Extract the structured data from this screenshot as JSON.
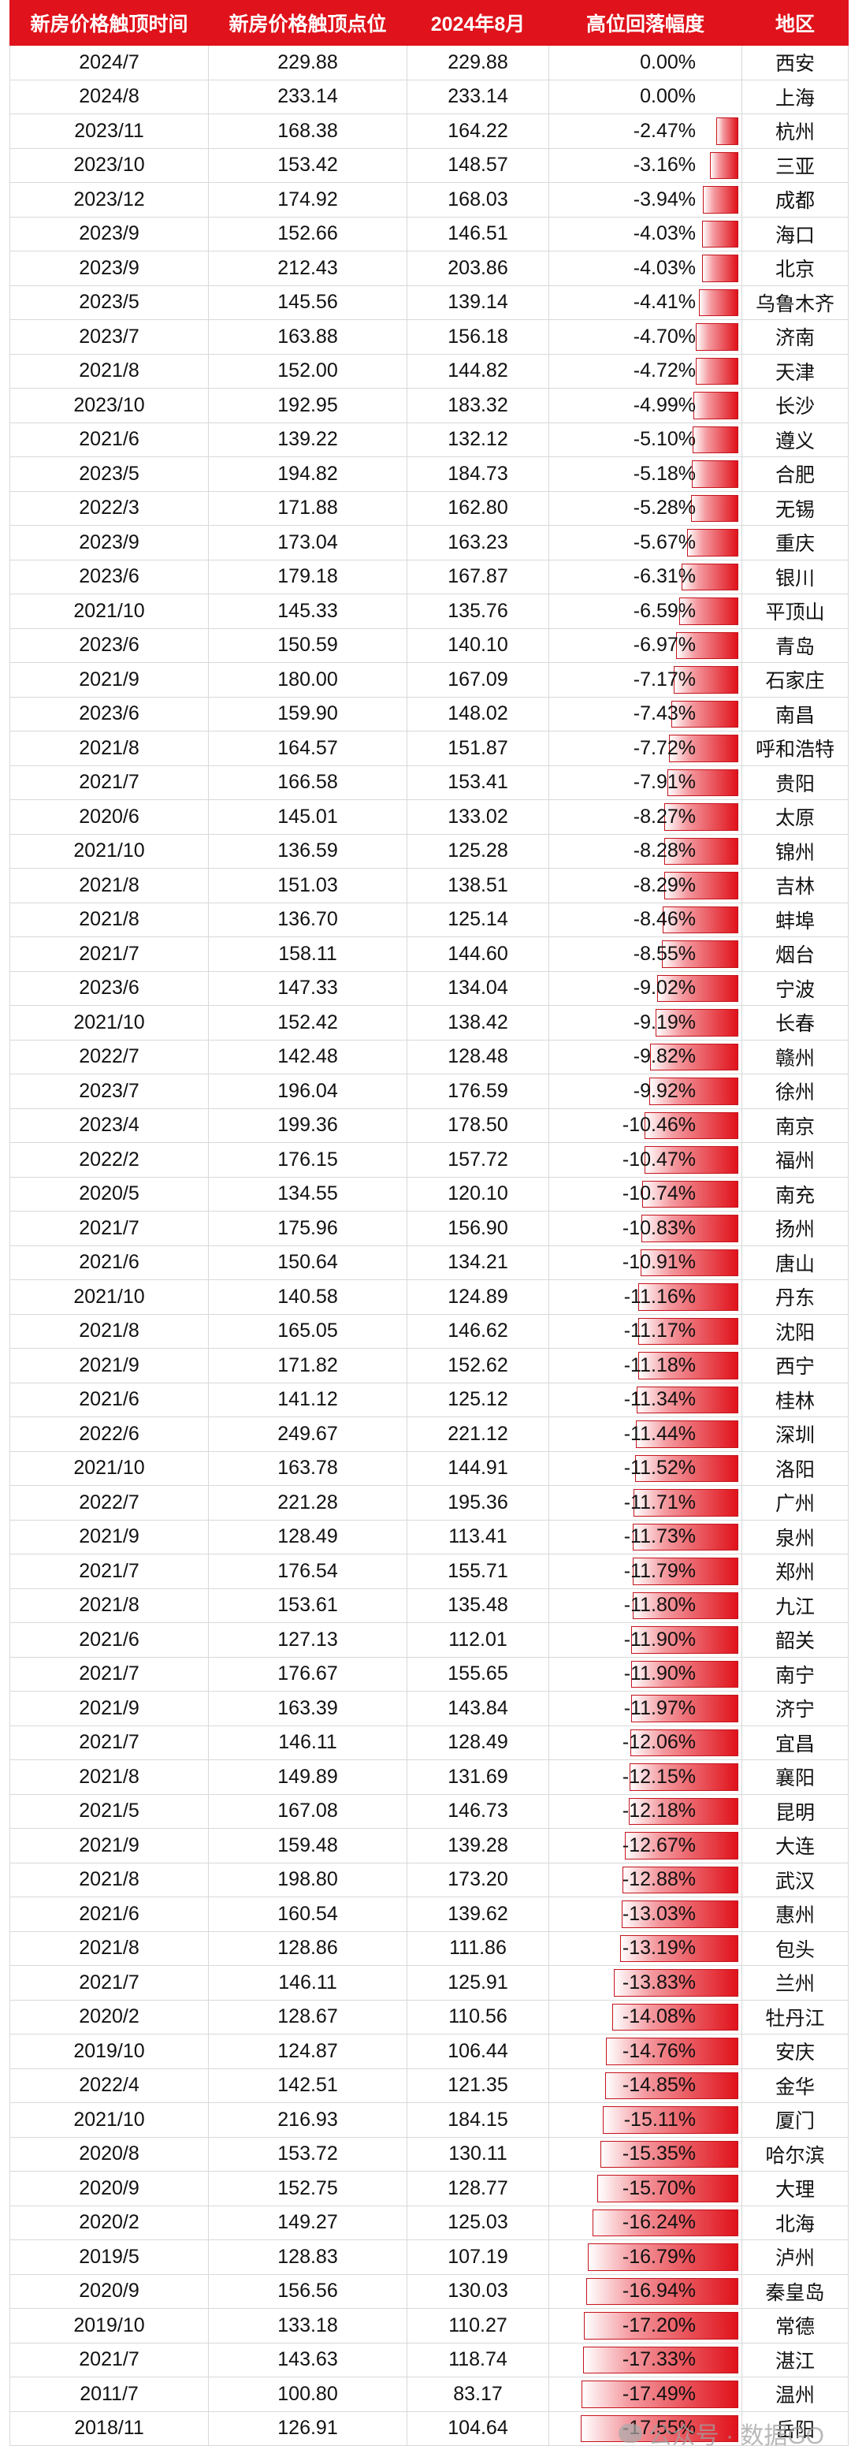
{
  "table": {
    "headers": [
      "新房价格触顶时间",
      "新房价格触顶点位",
      "2024年8月",
      "高位回落幅度",
      "地区"
    ],
    "rows": [
      {
        "time": "2024/7",
        "peak": "229.88",
        "aug": "229.88",
        "drop": "0.00%",
        "region": "西安",
        "pct": 0.0
      },
      {
        "time": "2024/8",
        "peak": "233.14",
        "aug": "233.14",
        "drop": "0.00%",
        "region": "上海",
        "pct": 0.0
      },
      {
        "time": "2023/11",
        "peak": "168.38",
        "aug": "164.22",
        "drop": "-2.47%",
        "region": "杭州",
        "pct": 2.47
      },
      {
        "time": "2023/10",
        "peak": "153.42",
        "aug": "148.57",
        "drop": "-3.16%",
        "region": "三亚",
        "pct": 3.16
      },
      {
        "time": "2023/12",
        "peak": "174.92",
        "aug": "168.03",
        "drop": "-3.94%",
        "region": "成都",
        "pct": 3.94
      },
      {
        "time": "2023/9",
        "peak": "152.66",
        "aug": "146.51",
        "drop": "-4.03%",
        "region": "海口",
        "pct": 4.03
      },
      {
        "time": "2023/9",
        "peak": "212.43",
        "aug": "203.86",
        "drop": "-4.03%",
        "region": "北京",
        "pct": 4.03
      },
      {
        "time": "2023/5",
        "peak": "145.56",
        "aug": "139.14",
        "drop": "-4.41%",
        "region": "乌鲁木齐",
        "pct": 4.41
      },
      {
        "time": "2023/7",
        "peak": "163.88",
        "aug": "156.18",
        "drop": "-4.70%",
        "region": "济南",
        "pct": 4.7
      },
      {
        "time": "2021/8",
        "peak": "152.00",
        "aug": "144.82",
        "drop": "-4.72%",
        "region": "天津",
        "pct": 4.72
      },
      {
        "time": "2023/10",
        "peak": "192.95",
        "aug": "183.32",
        "drop": "-4.99%",
        "region": "长沙",
        "pct": 4.99
      },
      {
        "time": "2021/6",
        "peak": "139.22",
        "aug": "132.12",
        "drop": "-5.10%",
        "region": "遵义",
        "pct": 5.1
      },
      {
        "time": "2023/5",
        "peak": "194.82",
        "aug": "184.73",
        "drop": "-5.18%",
        "region": "合肥",
        "pct": 5.18
      },
      {
        "time": "2022/3",
        "peak": "171.88",
        "aug": "162.80",
        "drop": "-5.28%",
        "region": "无锡",
        "pct": 5.28
      },
      {
        "time": "2023/9",
        "peak": "173.04",
        "aug": "163.23",
        "drop": "-5.67%",
        "region": "重庆",
        "pct": 5.67
      },
      {
        "time": "2023/6",
        "peak": "179.18",
        "aug": "167.87",
        "drop": "-6.31%",
        "region": "银川",
        "pct": 6.31
      },
      {
        "time": "2021/10",
        "peak": "145.33",
        "aug": "135.76",
        "drop": "-6.59%",
        "region": "平顶山",
        "pct": 6.59
      },
      {
        "time": "2023/6",
        "peak": "150.59",
        "aug": "140.10",
        "drop": "-6.97%",
        "region": "青岛",
        "pct": 6.97
      },
      {
        "time": "2021/9",
        "peak": "180.00",
        "aug": "167.09",
        "drop": "-7.17%",
        "region": "石家庄",
        "pct": 7.17
      },
      {
        "time": "2023/6",
        "peak": "159.90",
        "aug": "148.02",
        "drop": "-7.43%",
        "region": "南昌",
        "pct": 7.43
      },
      {
        "time": "2021/8",
        "peak": "164.57",
        "aug": "151.87",
        "drop": "-7.72%",
        "region": "呼和浩特",
        "pct": 7.72
      },
      {
        "time": "2021/7",
        "peak": "166.58",
        "aug": "153.41",
        "drop": "-7.91%",
        "region": "贵阳",
        "pct": 7.91
      },
      {
        "time": "2020/6",
        "peak": "145.01",
        "aug": "133.02",
        "drop": "-8.27%",
        "region": "太原",
        "pct": 8.27
      },
      {
        "time": "2021/10",
        "peak": "136.59",
        "aug": "125.28",
        "drop": "-8.28%",
        "region": "锦州",
        "pct": 8.28
      },
      {
        "time": "2021/8",
        "peak": "151.03",
        "aug": "138.51",
        "drop": "-8.29%",
        "region": "吉林",
        "pct": 8.29
      },
      {
        "time": "2021/8",
        "peak": "136.70",
        "aug": "125.14",
        "drop": "-8.46%",
        "region": "蚌埠",
        "pct": 8.46
      },
      {
        "time": "2021/7",
        "peak": "158.11",
        "aug": "144.60",
        "drop": "-8.55%",
        "region": "烟台",
        "pct": 8.55
      },
      {
        "time": "2023/6",
        "peak": "147.33",
        "aug": "134.04",
        "drop": "-9.02%",
        "region": "宁波",
        "pct": 9.02
      },
      {
        "time": "2021/10",
        "peak": "152.42",
        "aug": "138.42",
        "drop": "-9.19%",
        "region": "长春",
        "pct": 9.19
      },
      {
        "time": "2022/7",
        "peak": "142.48",
        "aug": "128.48",
        "drop": "-9.82%",
        "region": "赣州",
        "pct": 9.82
      },
      {
        "time": "2023/7",
        "peak": "196.04",
        "aug": "176.59",
        "drop": "-9.92%",
        "region": "徐州",
        "pct": 9.92
      },
      {
        "time": "2023/4",
        "peak": "199.36",
        "aug": "178.50",
        "drop": "-10.46%",
        "region": "南京",
        "pct": 10.46
      },
      {
        "time": "2022/2",
        "peak": "176.15",
        "aug": "157.72",
        "drop": "-10.47%",
        "region": "福州",
        "pct": 10.47
      },
      {
        "time": "2020/5",
        "peak": "134.55",
        "aug": "120.10",
        "drop": "-10.74%",
        "region": "南充",
        "pct": 10.74
      },
      {
        "time": "2021/7",
        "peak": "175.96",
        "aug": "156.90",
        "drop": "-10.83%",
        "region": "扬州",
        "pct": 10.83
      },
      {
        "time": "2021/6",
        "peak": "150.64",
        "aug": "134.21",
        "drop": "-10.91%",
        "region": "唐山",
        "pct": 10.91
      },
      {
        "time": "2021/10",
        "peak": "140.58",
        "aug": "124.89",
        "drop": "-11.16%",
        "region": "丹东",
        "pct": 11.16
      },
      {
        "time": "2021/8",
        "peak": "165.05",
        "aug": "146.62",
        "drop": "-11.17%",
        "region": "沈阳",
        "pct": 11.17
      },
      {
        "time": "2021/9",
        "peak": "171.82",
        "aug": "152.62",
        "drop": "-11.18%",
        "region": "西宁",
        "pct": 11.18
      },
      {
        "time": "2021/6",
        "peak": "141.12",
        "aug": "125.12",
        "drop": "-11.34%",
        "region": "桂林",
        "pct": 11.34
      },
      {
        "time": "2022/6",
        "peak": "249.67",
        "aug": "221.12",
        "drop": "-11.44%",
        "region": "深圳",
        "pct": 11.44
      },
      {
        "time": "2021/10",
        "peak": "163.78",
        "aug": "144.91",
        "drop": "-11.52%",
        "region": "洛阳",
        "pct": 11.52
      },
      {
        "time": "2022/7",
        "peak": "221.28",
        "aug": "195.36",
        "drop": "-11.71%",
        "region": "广州",
        "pct": 11.71
      },
      {
        "time": "2021/9",
        "peak": "128.49",
        "aug": "113.41",
        "drop": "-11.73%",
        "region": "泉州",
        "pct": 11.73
      },
      {
        "time": "2021/7",
        "peak": "176.54",
        "aug": "155.71",
        "drop": "-11.79%",
        "region": "郑州",
        "pct": 11.79
      },
      {
        "time": "2021/8",
        "peak": "153.61",
        "aug": "135.48",
        "drop": "-11.80%",
        "region": "九江",
        "pct": 11.8
      },
      {
        "time": "2021/6",
        "peak": "127.13",
        "aug": "112.01",
        "drop": "-11.90%",
        "region": "韶关",
        "pct": 11.9
      },
      {
        "time": "2021/7",
        "peak": "176.67",
        "aug": "155.65",
        "drop": "-11.90%",
        "region": "南宁",
        "pct": 11.9
      },
      {
        "time": "2021/9",
        "peak": "163.39",
        "aug": "143.84",
        "drop": "-11.97%",
        "region": "济宁",
        "pct": 11.97
      },
      {
        "time": "2021/7",
        "peak": "146.11",
        "aug": "128.49",
        "drop": "-12.06%",
        "region": "宜昌",
        "pct": 12.06
      },
      {
        "time": "2021/8",
        "peak": "149.89",
        "aug": "131.69",
        "drop": "-12.15%",
        "region": "襄阳",
        "pct": 12.15
      },
      {
        "time": "2021/5",
        "peak": "167.08",
        "aug": "146.73",
        "drop": "-12.18%",
        "region": "昆明",
        "pct": 12.18
      },
      {
        "time": "2021/9",
        "peak": "159.48",
        "aug": "139.28",
        "drop": "-12.67%",
        "region": "大连",
        "pct": 12.67
      },
      {
        "time": "2021/8",
        "peak": "198.80",
        "aug": "173.20",
        "drop": "-12.88%",
        "region": "武汉",
        "pct": 12.88
      },
      {
        "time": "2021/6",
        "peak": "160.54",
        "aug": "139.62",
        "drop": "-13.03%",
        "region": "惠州",
        "pct": 13.03
      },
      {
        "time": "2021/8",
        "peak": "128.86",
        "aug": "111.86",
        "drop": "-13.19%",
        "region": "包头",
        "pct": 13.19
      },
      {
        "time": "2021/7",
        "peak": "146.11",
        "aug": "125.91",
        "drop": "-13.83%",
        "region": "兰州",
        "pct": 13.83
      },
      {
        "time": "2020/2",
        "peak": "128.67",
        "aug": "110.56",
        "drop": "-14.08%",
        "region": "牡丹江",
        "pct": 14.08
      },
      {
        "time": "2019/10",
        "peak": "124.87",
        "aug": "106.44",
        "drop": "-14.76%",
        "region": "安庆",
        "pct": 14.76
      },
      {
        "time": "2022/4",
        "peak": "142.51",
        "aug": "121.35",
        "drop": "-14.85%",
        "region": "金华",
        "pct": 14.85
      },
      {
        "time": "2021/10",
        "peak": "216.93",
        "aug": "184.15",
        "drop": "-15.11%",
        "region": "厦门",
        "pct": 15.11
      },
      {
        "time": "2020/8",
        "peak": "153.72",
        "aug": "130.11",
        "drop": "-15.35%",
        "region": "哈尔滨",
        "pct": 15.35
      },
      {
        "time": "2020/9",
        "peak": "152.75",
        "aug": "128.77",
        "drop": "-15.70%",
        "region": "大理",
        "pct": 15.7
      },
      {
        "time": "2020/2",
        "peak": "149.27",
        "aug": "125.03",
        "drop": "-16.24%",
        "region": "北海",
        "pct": 16.24
      },
      {
        "time": "2019/5",
        "peak": "128.83",
        "aug": "107.19",
        "drop": "-16.79%",
        "region": "泸州",
        "pct": 16.79
      },
      {
        "time": "2020/9",
        "peak": "156.56",
        "aug": "130.03",
        "drop": "-16.94%",
        "region": "秦皇岛",
        "pct": 16.94
      },
      {
        "time": "2019/10",
        "peak": "133.18",
        "aug": "110.27",
        "drop": "-17.20%",
        "region": "常德",
        "pct": 17.2
      },
      {
        "time": "2021/7",
        "peak": "143.63",
        "aug": "118.74",
        "drop": "-17.33%",
        "region": "湛江",
        "pct": 17.33
      },
      {
        "time": "2011/7",
        "peak": "100.80",
        "aug": "83.17",
        "drop": "-17.49%",
        "region": "温州",
        "pct": 17.49
      },
      {
        "time": "2018/11",
        "peak": "126.91",
        "aug": "104.64",
        "drop": "-17.55%",
        "region": "岳阳",
        "pct": 17.55
      }
    ],
    "bar_max_pct": 17.55
  },
  "watermark": {
    "text": "公众号 · 数据GO"
  },
  "colors": {
    "header_bg": "#e0121b",
    "bar_color": "#e0121b"
  }
}
